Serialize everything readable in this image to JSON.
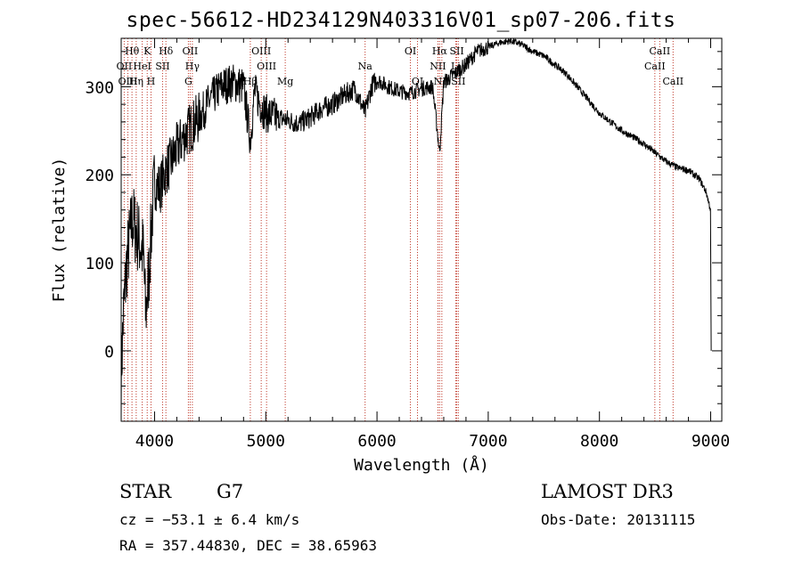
{
  "chart_data": {
    "type": "line",
    "title": "spec-56612-HD234129N403316V01_sp07-206.fits",
    "xlabel": "Wavelength (Å)",
    "ylabel": "Flux (relative)",
    "xlim": [
      3700,
      9100
    ],
    "ylim": [
      -80,
      355
    ],
    "xticks": [
      4000,
      5000,
      6000,
      7000,
      8000,
      9000
    ],
    "yticks": [
      0,
      100,
      200,
      300
    ],
    "series": [
      {
        "name": "spectrum",
        "anchors": [
          [
            3700,
            -30
          ],
          [
            3720,
            40
          ],
          [
            3750,
            100
          ],
          [
            3800,
            150
          ],
          [
            3850,
            130
          ],
          [
            3900,
            110
          ],
          [
            3920,
            40
          ],
          [
            3950,
            90
          ],
          [
            3980,
            160
          ],
          [
            4000,
            190
          ],
          [
            4050,
            185
          ],
          [
            4100,
            205
          ],
          [
            4150,
            215
          ],
          [
            4200,
            230
          ],
          [
            4300,
            250
          ],
          [
            4400,
            265
          ],
          [
            4500,
            285
          ],
          [
            4600,
            300
          ],
          [
            4700,
            305
          ],
          [
            4800,
            300
          ],
          [
            4861,
            240
          ],
          [
            4900,
            295
          ],
          [
            4950,
            280
          ],
          [
            5000,
            270
          ],
          [
            5100,
            265
          ],
          [
            5200,
            262
          ],
          [
            5300,
            258
          ],
          [
            5400,
            265
          ],
          [
            5500,
            275
          ],
          [
            5600,
            280
          ],
          [
            5700,
            290
          ],
          [
            5800,
            298
          ],
          [
            5893,
            270
          ],
          [
            5950,
            300
          ],
          [
            6000,
            308
          ],
          [
            6100,
            300
          ],
          [
            6200,
            295
          ],
          [
            6300,
            293
          ],
          [
            6400,
            298
          ],
          [
            6500,
            300
          ],
          [
            6563,
            225
          ],
          [
            6600,
            305
          ],
          [
            6700,
            315
          ],
          [
            6800,
            325
          ],
          [
            6900,
            340
          ],
          [
            7000,
            345
          ],
          [
            7100,
            350
          ],
          [
            7200,
            352
          ],
          [
            7300,
            348
          ],
          [
            7400,
            340
          ],
          [
            7500,
            335
          ],
          [
            7600,
            325
          ],
          [
            7700,
            315
          ],
          [
            7800,
            300
          ],
          [
            7900,
            285
          ],
          [
            8000,
            270
          ],
          [
            8100,
            260
          ],
          [
            8200,
            250
          ],
          [
            8300,
            243
          ],
          [
            8400,
            235
          ],
          [
            8500,
            225
          ],
          [
            8600,
            215
          ],
          [
            8700,
            208
          ],
          [
            8800,
            205
          ],
          [
            8900,
            195
          ],
          [
            8960,
            180
          ],
          [
            9000,
            160
          ],
          [
            9005,
            0
          ]
        ]
      }
    ],
    "line_markers": [
      {
        "name": "Hθ",
        "wavelength": 3797,
        "row": 0
      },
      {
        "name": "K",
        "wavelength": 3934,
        "row": 0
      },
      {
        "name": "Hδ",
        "wavelength": 4102,
        "row": 0
      },
      {
        "name": "OII",
        "wavelength": 4320,
        "row": 0
      },
      {
        "name": "OIII",
        "wavelength": 4959,
        "row": 0
      },
      {
        "name": "OI",
        "wavelength": 6300,
        "row": 0
      },
      {
        "name": "Hα",
        "wavelength": 6563,
        "row": 0
      },
      {
        "name": "SII",
        "wavelength": 6717,
        "row": 0
      },
      {
        "name": "CaII",
        "wavelength": 8542,
        "row": 0
      },
      {
        "name": "OII",
        "wavelength": 3727,
        "row": 1
      },
      {
        "name": "HeI",
        "wavelength": 3889,
        "row": 1
      },
      {
        "name": "SII",
        "wavelength": 4072,
        "row": 1
      },
      {
        "name": "Hγ",
        "wavelength": 4340,
        "row": 1
      },
      {
        "name": "OIII",
        "wavelength": 5007,
        "row": 1
      },
      {
        "name": "Na",
        "wavelength": 5893,
        "row": 1
      },
      {
        "name": "NII",
        "wavelength": 6548,
        "row": 1
      },
      {
        "name": "Li",
        "wavelength": 6708,
        "row": 1
      },
      {
        "name": "CaII",
        "wavelength": 8498,
        "row": 1
      },
      {
        "name": "OIII",
        "wavelength": 3760,
        "row": 2
      },
      {
        "name": "Hη",
        "wavelength": 3835,
        "row": 2
      },
      {
        "name": "H",
        "wavelength": 3968,
        "row": 2
      },
      {
        "name": "G",
        "wavelength": 4304,
        "row": 2
      },
      {
        "name": "Hβ",
        "wavelength": 4861,
        "row": 2
      },
      {
        "name": "Mg",
        "wavelength": 5175,
        "row": 2
      },
      {
        "name": "OI",
        "wavelength": 6364,
        "row": 2
      },
      {
        "name": "NII",
        "wavelength": 6583,
        "row": 2
      },
      {
        "name": "SII",
        "wavelength": 6731,
        "row": 2
      },
      {
        "name": "CaII",
        "wavelength": 8662,
        "row": 2
      }
    ]
  },
  "info": {
    "object_class": "STAR",
    "subclass": "G7",
    "survey": "LAMOST DR3",
    "redshift": "cz = −53.1 ± 6.4 km/s",
    "obs_date": "Obs-Date: 20131115",
    "coords": "RA = 357.44830, DEC =  38.65963"
  }
}
